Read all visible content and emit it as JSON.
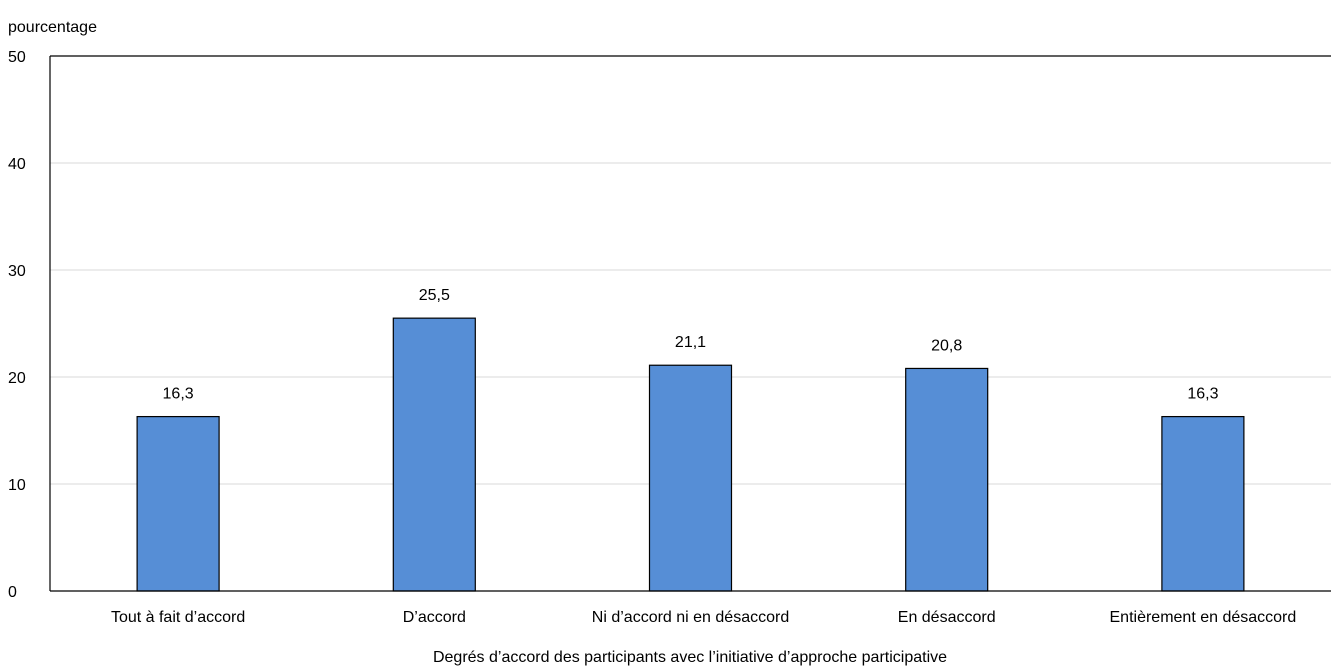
{
  "chart_data": {
    "type": "bar",
    "ylabel": "pourcentage",
    "xlabel": "Degrés d’accord des participants avec l’initiative d’approche participative",
    "categories": [
      "Tout à fait d’accord",
      "D’accord",
      "Ni d’accord ni en désaccord",
      "En désaccord",
      "Entièrement en désaccord"
    ],
    "values": [
      16.3,
      25.5,
      21.1,
      20.8,
      16.3
    ],
    "value_labels": [
      "16,3",
      "25,5",
      "21,1",
      "20,8",
      "16,3"
    ],
    "ylim": [
      0,
      50
    ],
    "yticks": [
      0,
      10,
      20,
      30,
      40,
      50
    ],
    "grid": true,
    "legend": "none",
    "bar_color": "#568ED6",
    "bar_stroke": "#000000",
    "grid_color": "#D9D9D9"
  }
}
